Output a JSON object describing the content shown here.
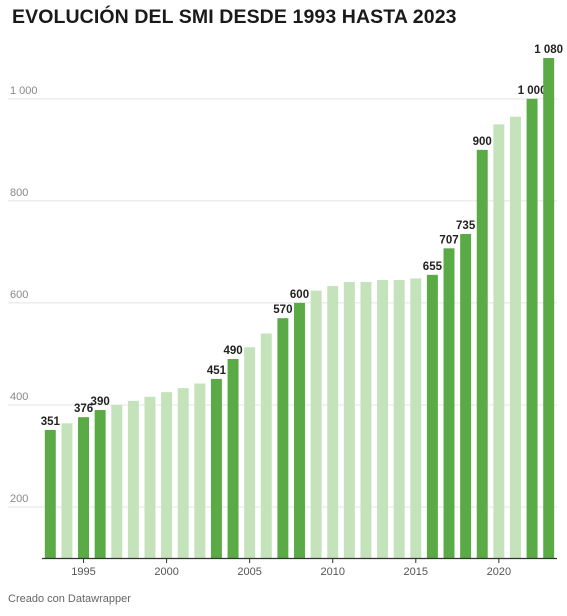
{
  "title": "EVOLUCIÓN DEL SMI DESDE 1993 HASTA 2023",
  "footer": "Creado con Datawrapper",
  "colors": {
    "highlight": "#5aaa46",
    "normal": "#c4e3bb",
    "grid": "#e4e4e4",
    "axis": "#333333"
  },
  "chart_data": {
    "type": "bar",
    "categories": [
      "1993",
      "1994",
      "1995",
      "1996",
      "1997",
      "1998",
      "1999",
      "2000",
      "2001",
      "2002",
      "2003",
      "2004",
      "2005",
      "2006",
      "2007",
      "2008",
      "2009",
      "2010",
      "2011",
      "2012",
      "2013",
      "2014",
      "2015",
      "2016",
      "2017",
      "2018",
      "2019",
      "2020",
      "2021",
      "2022",
      "2023"
    ],
    "values": [
      351,
      364,
      376,
      390,
      400,
      408,
      416,
      425,
      433,
      442,
      451,
      490,
      513,
      540,
      570,
      600,
      624,
      633,
      641,
      641,
      645,
      645,
      648,
      655,
      707,
      735,
      900,
      950,
      965,
      1000,
      1080
    ],
    "highlighted": [
      true,
      false,
      true,
      true,
      false,
      false,
      false,
      false,
      false,
      false,
      true,
      true,
      false,
      false,
      true,
      true,
      false,
      false,
      false,
      false,
      false,
      false,
      false,
      true,
      true,
      true,
      true,
      false,
      false,
      true,
      true
    ],
    "data_labels": [
      "351",
      "",
      "376",
      "390",
      "",
      "",
      "",
      "",
      "",
      "",
      "451",
      "490",
      "",
      "",
      "570",
      "600",
      "",
      "",
      "",
      "",
      "",
      "",
      "",
      "655",
      "707",
      "735",
      "900",
      "",
      "",
      "1 000",
      "1 080"
    ],
    "y_ticks": [
      200,
      400,
      600,
      800,
      1000
    ],
    "y_tick_labels": [
      "200",
      "400",
      "600",
      "800",
      "1 000"
    ],
    "x_ticks": [
      1995,
      2000,
      2005,
      2010,
      2015,
      2020
    ],
    "x_tick_labels": [
      "1995",
      "2000",
      "2005",
      "2010",
      "2015",
      "2020"
    ],
    "ylim": [
      100,
      1080
    ],
    "grid": true
  }
}
